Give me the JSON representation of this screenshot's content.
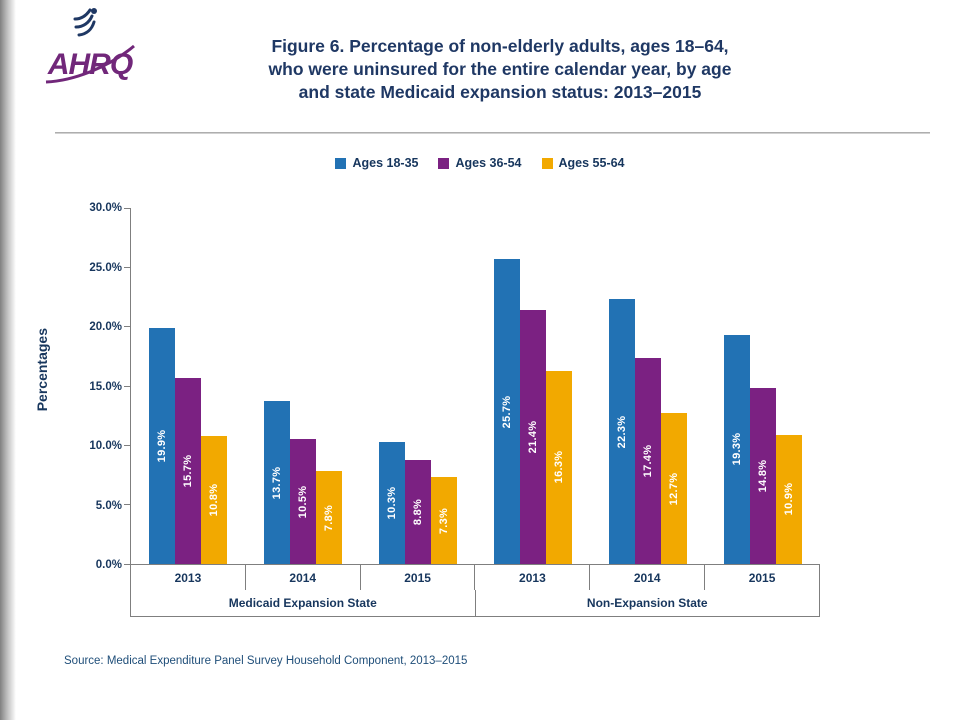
{
  "logo": {
    "text": "AHRQ"
  },
  "title_lines": [
    "Figure 6. Percentage of non-elderly adults, ages 18–64,",
    "who were uninsured for the entire calendar year, by age",
    "and state Medicaid expansion status: 2013–2015"
  ],
  "source": "Source: Medical Expenditure Panel Survey Household Component, 2013–2015",
  "colors": {
    "brand_purple": "#71277A",
    "title_navy": "#1F3864",
    "axis_text_navy": "#17365D",
    "axis_line_gray": "#7F7F7F",
    "source_blue": "#1F4E79"
  },
  "chart_data": {
    "type": "bar",
    "title": "Figure 6. Percentage of non-elderly adults, ages 18–64, who were uninsured for the entire calendar year, by age and state Medicaid expansion status: 2013–2015",
    "ylabel": "Percentages",
    "ylim": [
      0,
      30
    ],
    "yticks": [
      0,
      5,
      10,
      15,
      20,
      25,
      30
    ],
    "ytick_labels": [
      "0.0%",
      "5.0%",
      "10.0%",
      "15.0%",
      "20.0%",
      "25.0%",
      "30.0%"
    ],
    "grid": false,
    "legend_position": "top",
    "categories": [
      "2013",
      "2014",
      "2015",
      "2013",
      "2014",
      "2015"
    ],
    "category_groups": [
      {
        "label": "Medicaid Expansion State",
        "span": 3
      },
      {
        "label": "Non-Expansion State",
        "span": 3
      }
    ],
    "series": [
      {
        "name": "Ages 18-35",
        "color": "#2272B4",
        "values": [
          19.9,
          13.7,
          10.3,
          25.7,
          22.3,
          19.3
        ]
      },
      {
        "name": "Ages 36-54",
        "color": "#7B2182",
        "values": [
          15.7,
          10.5,
          8.8,
          21.4,
          17.4,
          14.8
        ]
      },
      {
        "name": "Ages 55-64",
        "color": "#F2A900",
        "values": [
          10.8,
          7.8,
          7.3,
          16.3,
          12.7,
          10.9
        ]
      }
    ],
    "value_label_format": "{v}%",
    "value_label_color": "#ffffff"
  }
}
